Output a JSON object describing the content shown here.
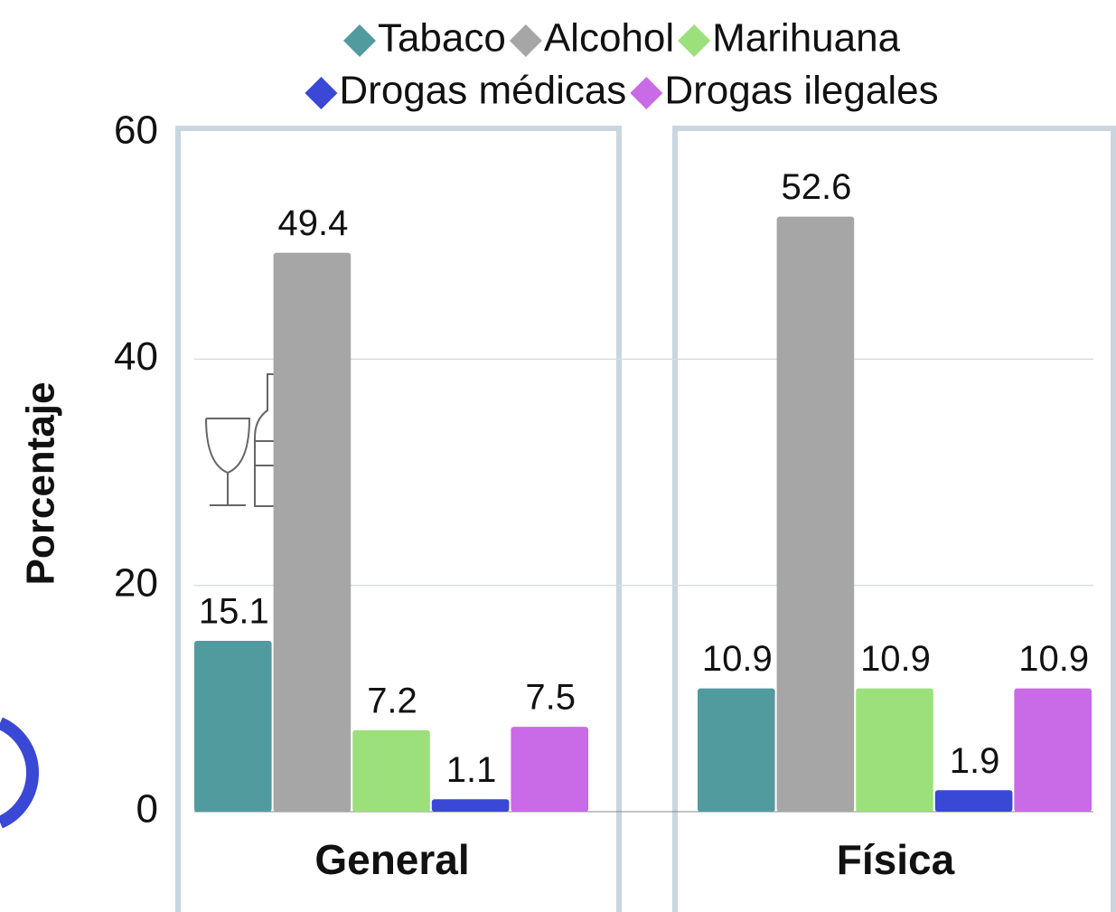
{
  "chart_data": {
    "type": "bar",
    "y_label": "Porcentaje",
    "categories": [
      "General",
      "Física"
    ],
    "series": [
      {
        "name": "Tabaco",
        "color": "#519b9f",
        "values": [
          15.1,
          10.9
        ]
      },
      {
        "name": "Alcohol",
        "color": "#a6a6a6",
        "values": [
          49.4,
          52.6
        ]
      },
      {
        "name": "Marihuana",
        "color": "#9ce07c",
        "values": [
          7.2,
          10.9
        ]
      },
      {
        "name": "Drogas médicas",
        "color": "#3a48d6",
        "values": [
          1.1,
          1.9
        ]
      },
      {
        "name": "Drogas ilegales",
        "color": "#c96ae6",
        "values": [
          7.5,
          10.9
        ]
      }
    ],
    "ylim": [
      0,
      60
    ],
    "yticks": [
      0,
      20,
      40,
      60
    ],
    "grid": true
  }
}
